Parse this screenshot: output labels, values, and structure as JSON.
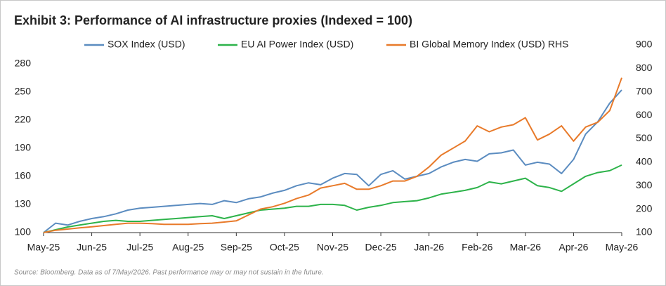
{
  "chart_data": {
    "type": "line",
    "title": "Exhibit 3: Performance of AI infrastructure proxies (Indexed = 100)",
    "source": "Source: Bloomberg. Data as of 7/May/2026. Past performance may or may not sustain in the future.",
    "x": [
      0,
      0.25,
      0.5,
      0.75,
      1,
      1.25,
      1.5,
      1.75,
      2,
      2.25,
      2.5,
      2.75,
      3,
      3.25,
      3.5,
      3.75,
      4,
      4.25,
      4.5,
      4.75,
      5,
      5.25,
      5.5,
      5.75,
      6,
      6.25,
      6.5,
      6.75,
      7,
      7.25,
      7.5,
      7.75,
      8,
      8.25,
      8.5,
      8.75,
      9,
      9.25,
      9.5,
      9.75,
      10,
      10.25,
      10.5,
      10.75,
      11,
      11.25,
      11.5,
      11.75,
      12
    ],
    "xlim": [
      0,
      12
    ],
    "xticks": [
      {
        "value": 0,
        "label": "May-25"
      },
      {
        "value": 1,
        "label": "Jun-25"
      },
      {
        "value": 2,
        "label": "Jul-25"
      },
      {
        "value": 3,
        "label": "Aug-25"
      },
      {
        "value": 4,
        "label": "Sep-25"
      },
      {
        "value": 5,
        "label": "Oct-25"
      },
      {
        "value": 6,
        "label": "Nov-25"
      },
      {
        "value": 7,
        "label": "Dec-25"
      },
      {
        "value": 8,
        "label": "Jan-26"
      },
      {
        "value": 9,
        "label": "Feb-26"
      },
      {
        "value": 10,
        "label": "Mar-26"
      },
      {
        "value": 11,
        "label": "Apr-26"
      },
      {
        "value": 12,
        "label": "May-26"
      }
    ],
    "ylim": [
      100,
      300
    ],
    "yticks": [
      100,
      130,
      160,
      190,
      220,
      250,
      280
    ],
    "y2lim": [
      100,
      900
    ],
    "y2ticks": [
      100,
      200,
      300,
      400,
      500,
      600,
      700,
      800,
      900
    ],
    "series": [
      {
        "name": "SOX Index (USD)",
        "color": "#5b8cc0",
        "values": [
          100,
          110,
          108,
          112,
          115,
          117,
          120,
          124,
          126,
          127,
          128,
          129,
          130,
          131,
          130,
          134,
          132,
          136,
          138,
          142,
          145,
          150,
          153,
          151,
          158,
          163,
          162,
          150,
          162,
          166,
          157,
          160,
          163,
          170,
          175,
          178,
          176,
          184,
          185,
          188,
          172,
          175,
          173,
          163,
          178,
          205,
          218,
          238,
          252
        ]
      },
      {
        "name": "EU AI Power Index (USD)",
        "color": "#2db34a",
        "values": [
          100,
          103,
          106,
          108,
          110,
          112,
          113,
          112,
          112,
          113,
          114,
          115,
          116,
          117,
          118,
          115,
          118,
          121,
          124,
          125,
          126,
          128,
          128,
          130,
          130,
          129,
          124,
          127,
          129,
          132,
          133,
          134,
          137,
          141,
          143,
          145,
          148,
          154,
          152,
          155,
          158,
          150,
          148,
          144,
          152,
          160,
          164,
          166,
          172
        ]
      },
      {
        "name": "BI Global Memory Index (USD) RHS",
        "color": "#e87a2a",
        "axis": "y2",
        "values": [
          100,
          110,
          115,
          120,
          125,
          130,
          135,
          140,
          140,
          138,
          135,
          135,
          135,
          138,
          140,
          145,
          150,
          175,
          200,
          210,
          225,
          245,
          260,
          290,
          300,
          310,
          285,
          285,
          300,
          320,
          320,
          340,
          380,
          430,
          460,
          490,
          555,
          530,
          550,
          560,
          590,
          495,
          520,
          555,
          490,
          550,
          570,
          620,
          760
        ]
      }
    ]
  }
}
